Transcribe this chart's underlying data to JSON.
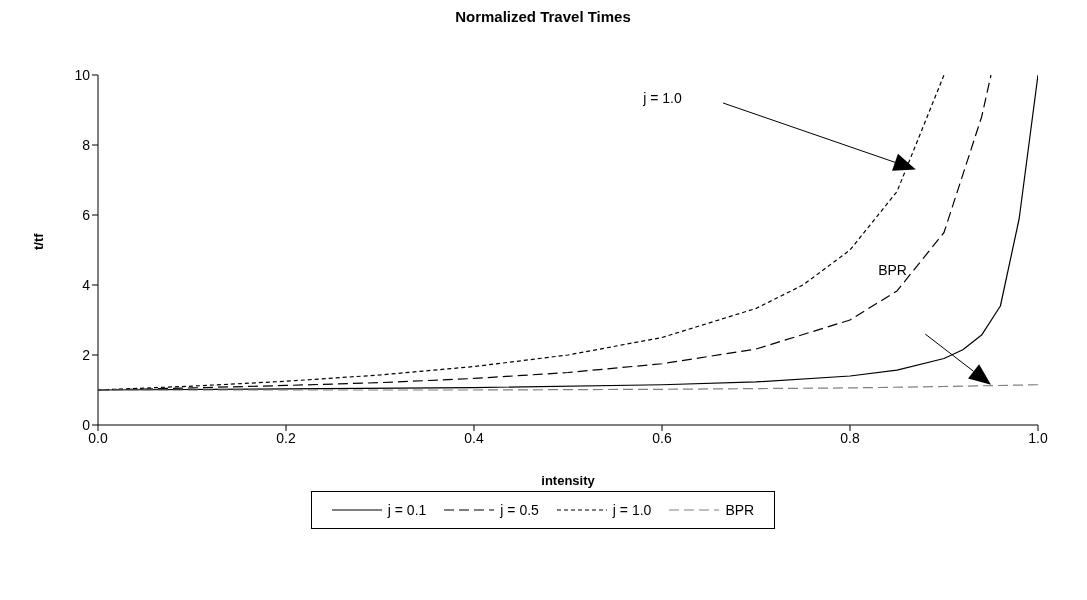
{
  "chart_data": {
    "type": "line",
    "title": "Normalized Travel Times",
    "xlabel": "intensity",
    "ylabel": "t/tf",
    "xlim": [
      0,
      1
    ],
    "xticks": [
      {
        "value": 0,
        "label": "0.0"
      },
      {
        "value": 0.2,
        "label": "0.2"
      },
      {
        "value": 0.4,
        "label": "0.4"
      },
      {
        "value": 0.6,
        "label": "0.6"
      },
      {
        "value": 0.8,
        "label": "0.8"
      },
      {
        "value": 1,
        "label": "1.0"
      }
    ],
    "ylim": [
      0,
      10
    ],
    "yticks": [
      0,
      2,
      4,
      6,
      8,
      10
    ],
    "legend": "bottom",
    "marker": "none",
    "series": [
      {
        "name": "j = 0.1",
        "color": "#000000",
        "line_style": "solid",
        "x": [
          0,
          0.2,
          0.4,
          0.6,
          0.7,
          0.8,
          0.85,
          0.9,
          0.92,
          0.94,
          0.96,
          0.98,
          1.0
        ],
        "values": [
          1,
          1.03,
          1.07,
          1.15,
          1.23,
          1.4,
          1.57,
          1.9,
          2.15,
          2.57,
          3.4,
          5.9,
          10
        ]
      },
      {
        "name": "j = 0.5",
        "color": "#000000",
        "line_style": "dashed",
        "x": [
          0,
          0.1,
          0.2,
          0.3,
          0.4,
          0.5,
          0.6,
          0.7,
          0.8,
          0.85,
          0.9,
          0.94,
          0.95
        ],
        "values": [
          1,
          1.06,
          1.13,
          1.21,
          1.33,
          1.5,
          1.75,
          2.17,
          3,
          3.83,
          5.5,
          8.8,
          10
        ]
      },
      {
        "name": "j = 1.0",
        "color": "#000000",
        "line_style": "dotted",
        "x": [
          0,
          0.1,
          0.2,
          0.3,
          0.4,
          0.5,
          0.6,
          0.7,
          0.75,
          0.8,
          0.85,
          0.9
        ],
        "values": [
          1,
          1.11,
          1.25,
          1.43,
          1.67,
          2,
          2.5,
          3.33,
          4,
          5,
          6.67,
          10
        ]
      },
      {
        "name": "BPR",
        "color": "#808080",
        "line_style": "dashed",
        "x": [
          0,
          0.2,
          0.4,
          0.6,
          0.8,
          0.9,
          1.0
        ],
        "values": [
          1,
          1,
          1,
          1.02,
          1.06,
          1.1,
          1.15
        ]
      }
    ],
    "annotations": [
      "j = 1.0",
      "BPR"
    ]
  }
}
